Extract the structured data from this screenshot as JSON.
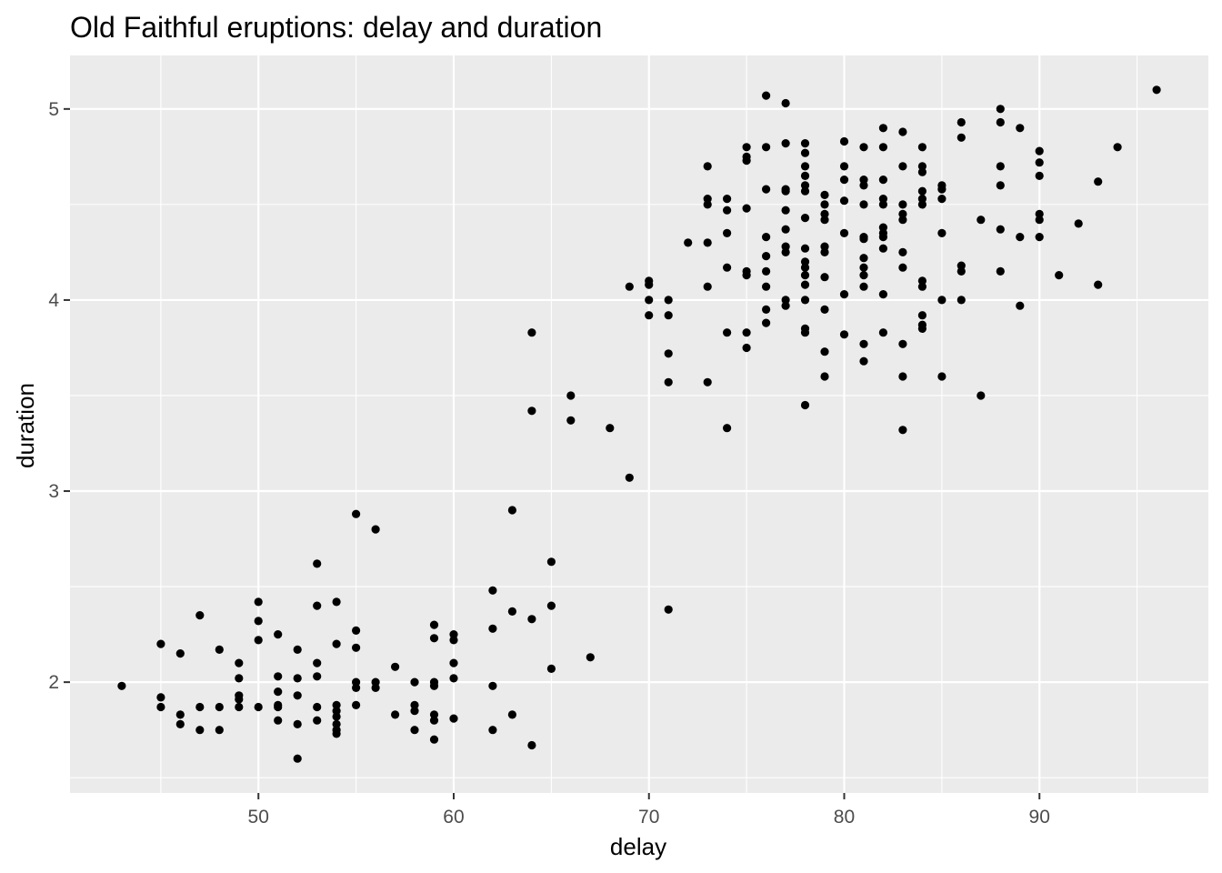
{
  "chart_data": {
    "type": "scatter",
    "title": "Old Faithful eruptions: delay and duration",
    "xlabel": "delay",
    "ylabel": "duration",
    "xlim": [
      40.35,
      98.65
    ],
    "ylim": [
      1.42,
      5.28
    ],
    "xticks": [
      "50",
      "60",
      "70",
      "80",
      "90"
    ],
    "yticks": [
      "2",
      "3",
      "4",
      "5"
    ],
    "grid": true,
    "legend": "none",
    "colors": {
      "panel": "#ebebeb",
      "grid": "#ffffff",
      "point": "#000000",
      "tick": "#4d4d4d"
    },
    "points": [
      [
        43,
        1.98
      ],
      [
        45,
        2.2
      ],
      [
        45,
        1.92
      ],
      [
        45,
        1.87
      ],
      [
        46,
        2.15
      ],
      [
        46,
        1.83
      ],
      [
        46,
        1.78
      ],
      [
        47,
        2.35
      ],
      [
        47,
        1.87
      ],
      [
        47,
        1.75
      ],
      [
        48,
        2.17
      ],
      [
        48,
        1.87
      ],
      [
        48,
        1.75
      ],
      [
        49,
        2.1
      ],
      [
        49,
        2.02
      ],
      [
        49,
        1.93
      ],
      [
        49,
        1.91
      ],
      [
        49,
        1.87
      ],
      [
        50,
        2.42
      ],
      [
        50,
        2.32
      ],
      [
        50,
        2.22
      ],
      [
        50,
        1.87
      ],
      [
        51,
        2.25
      ],
      [
        51,
        2.03
      ],
      [
        51,
        1.95
      ],
      [
        51,
        1.88
      ],
      [
        51,
        1.87
      ],
      [
        51,
        1.8
      ],
      [
        52,
        2.17
      ],
      [
        52,
        2.02
      ],
      [
        52,
        1.93
      ],
      [
        52,
        1.78
      ],
      [
        52,
        1.6
      ],
      [
        53,
        2.62
      ],
      [
        53,
        2.4
      ],
      [
        53,
        2.1
      ],
      [
        53,
        2.03
      ],
      [
        53,
        1.87
      ],
      [
        53,
        1.8
      ],
      [
        54,
        2.42
      ],
      [
        54,
        2.2
      ],
      [
        54,
        1.88
      ],
      [
        54,
        1.85
      ],
      [
        54,
        1.82
      ],
      [
        54,
        1.78
      ],
      [
        54,
        1.75
      ],
      [
        54,
        1.73
      ],
      [
        55,
        2.88
      ],
      [
        55,
        2.27
      ],
      [
        55,
        2.18
      ],
      [
        55,
        2.0
      ],
      [
        55,
        1.97
      ],
      [
        55,
        1.88
      ],
      [
        56,
        2.8
      ],
      [
        56,
        2.0
      ],
      [
        56,
        1.97
      ],
      [
        57,
        2.08
      ],
      [
        57,
        1.83
      ],
      [
        58,
        2.0
      ],
      [
        58,
        1.88
      ],
      [
        58,
        1.85
      ],
      [
        58,
        1.75
      ],
      [
        59,
        2.3
      ],
      [
        59,
        2.23
      ],
      [
        59,
        2.0
      ],
      [
        59,
        1.98
      ],
      [
        59,
        1.83
      ],
      [
        59,
        1.8
      ],
      [
        59,
        1.7
      ],
      [
        60,
        2.25
      ],
      [
        60,
        2.22
      ],
      [
        60,
        2.1
      ],
      [
        60,
        2.02
      ],
      [
        60,
        1.81
      ],
      [
        62,
        2.48
      ],
      [
        62,
        2.28
      ],
      [
        62,
        1.98
      ],
      [
        62,
        1.75
      ],
      [
        63,
        2.9
      ],
      [
        63,
        2.37
      ],
      [
        63,
        1.83
      ],
      [
        64,
        3.83
      ],
      [
        64,
        3.42
      ],
      [
        64,
        2.33
      ],
      [
        64,
        1.67
      ],
      [
        65,
        2.63
      ],
      [
        65,
        2.4
      ],
      [
        65,
        2.07
      ],
      [
        66,
        3.5
      ],
      [
        66,
        3.37
      ],
      [
        67,
        2.13
      ],
      [
        68,
        3.33
      ],
      [
        69,
        4.07
      ],
      [
        69,
        3.07
      ],
      [
        70,
        4.1
      ],
      [
        70,
        4.08
      ],
      [
        70,
        4.0
      ],
      [
        70,
        3.92
      ],
      [
        71,
        4.0
      ],
      [
        71,
        3.92
      ],
      [
        71,
        3.72
      ],
      [
        71,
        3.57
      ],
      [
        71,
        2.38
      ],
      [
        72,
        4.3
      ],
      [
        73,
        4.7
      ],
      [
        73,
        4.53
      ],
      [
        73,
        4.5
      ],
      [
        73,
        4.3
      ],
      [
        73,
        4.07
      ],
      [
        73,
        3.57
      ],
      [
        74,
        4.53
      ],
      [
        74,
        4.47
      ],
      [
        74,
        4.35
      ],
      [
        74,
        4.17
      ],
      [
        74,
        3.83
      ],
      [
        74,
        3.33
      ],
      [
        75,
        4.8
      ],
      [
        75,
        4.75
      ],
      [
        75,
        4.73
      ],
      [
        75,
        4.48
      ],
      [
        75,
        4.15
      ],
      [
        75,
        4.13
      ],
      [
        75,
        3.83
      ],
      [
        75,
        3.75
      ],
      [
        76,
        5.07
      ],
      [
        76,
        4.8
      ],
      [
        76,
        4.58
      ],
      [
        76,
        4.33
      ],
      [
        76,
        4.23
      ],
      [
        76,
        4.15
      ],
      [
        76,
        4.07
      ],
      [
        76,
        3.95
      ],
      [
        76,
        3.88
      ],
      [
        77,
        5.03
      ],
      [
        77,
        4.82
      ],
      [
        77,
        4.58
      ],
      [
        77,
        4.57
      ],
      [
        77,
        4.47
      ],
      [
        77,
        4.37
      ],
      [
        77,
        4.28
      ],
      [
        77,
        4.25
      ],
      [
        77,
        4.0
      ],
      [
        77,
        3.97
      ],
      [
        78,
        4.82
      ],
      [
        78,
        4.77
      ],
      [
        78,
        4.7
      ],
      [
        78,
        4.65
      ],
      [
        78,
        4.6
      ],
      [
        78,
        4.57
      ],
      [
        78,
        4.43
      ],
      [
        78,
        4.27
      ],
      [
        78,
        4.2
      ],
      [
        78,
        4.17
      ],
      [
        78,
        4.13
      ],
      [
        78,
        4.08
      ],
      [
        78,
        4.0
      ],
      [
        78,
        3.85
      ],
      [
        78,
        3.83
      ],
      [
        78,
        3.45
      ],
      [
        79,
        4.55
      ],
      [
        79,
        4.5
      ],
      [
        79,
        4.45
      ],
      [
        79,
        4.42
      ],
      [
        79,
        4.28
      ],
      [
        79,
        4.25
      ],
      [
        79,
        4.12
      ],
      [
        79,
        3.95
      ],
      [
        79,
        3.73
      ],
      [
        79,
        3.6
      ],
      [
        80,
        4.83
      ],
      [
        80,
        4.7
      ],
      [
        80,
        4.63
      ],
      [
        80,
        4.52
      ],
      [
        80,
        4.35
      ],
      [
        80,
        4.03
      ],
      [
        80,
        3.82
      ],
      [
        81,
        4.8
      ],
      [
        81,
        4.63
      ],
      [
        81,
        4.6
      ],
      [
        81,
        4.5
      ],
      [
        81,
        4.33
      ],
      [
        81,
        4.32
      ],
      [
        81,
        4.22
      ],
      [
        81,
        4.17
      ],
      [
        81,
        4.13
      ],
      [
        81,
        4.07
      ],
      [
        81,
        3.77
      ],
      [
        81,
        3.68
      ],
      [
        82,
        4.9
      ],
      [
        82,
        4.8
      ],
      [
        82,
        4.63
      ],
      [
        82,
        4.53
      ],
      [
        82,
        4.5
      ],
      [
        82,
        4.38
      ],
      [
        82,
        4.35
      ],
      [
        82,
        4.33
      ],
      [
        82,
        4.27
      ],
      [
        82,
        4.03
      ],
      [
        82,
        3.83
      ],
      [
        83,
        4.88
      ],
      [
        83,
        4.7
      ],
      [
        83,
        4.5
      ],
      [
        83,
        4.45
      ],
      [
        83,
        4.42
      ],
      [
        83,
        4.25
      ],
      [
        83,
        4.17
      ],
      [
        83,
        3.77
      ],
      [
        83,
        3.6
      ],
      [
        83,
        3.32
      ],
      [
        84,
        4.8
      ],
      [
        84,
        4.7
      ],
      [
        84,
        4.67
      ],
      [
        84,
        4.57
      ],
      [
        84,
        4.53
      ],
      [
        84,
        4.5
      ],
      [
        84,
        4.1
      ],
      [
        84,
        4.07
      ],
      [
        84,
        3.92
      ],
      [
        84,
        3.87
      ],
      [
        84,
        3.85
      ],
      [
        85,
        4.6
      ],
      [
        85,
        4.58
      ],
      [
        85,
        4.53
      ],
      [
        85,
        4.35
      ],
      [
        85,
        4.0
      ],
      [
        85,
        3.6
      ],
      [
        86,
        4.93
      ],
      [
        86,
        4.85
      ],
      [
        86,
        4.18
      ],
      [
        86,
        4.15
      ],
      [
        86,
        4.0
      ],
      [
        87,
        4.42
      ],
      [
        87,
        3.5
      ],
      [
        88,
        5.0
      ],
      [
        88,
        4.93
      ],
      [
        88,
        4.7
      ],
      [
        88,
        4.6
      ],
      [
        88,
        4.37
      ],
      [
        88,
        4.15
      ],
      [
        89,
        4.9
      ],
      [
        89,
        4.33
      ],
      [
        89,
        3.97
      ],
      [
        90,
        4.78
      ],
      [
        90,
        4.72
      ],
      [
        90,
        4.65
      ],
      [
        90,
        4.45
      ],
      [
        90,
        4.42
      ],
      [
        90,
        4.33
      ],
      [
        91,
        4.13
      ],
      [
        92,
        4.4
      ],
      [
        93,
        4.62
      ],
      [
        93,
        4.08
      ],
      [
        94,
        4.8
      ],
      [
        96,
        5.1
      ]
    ]
  }
}
